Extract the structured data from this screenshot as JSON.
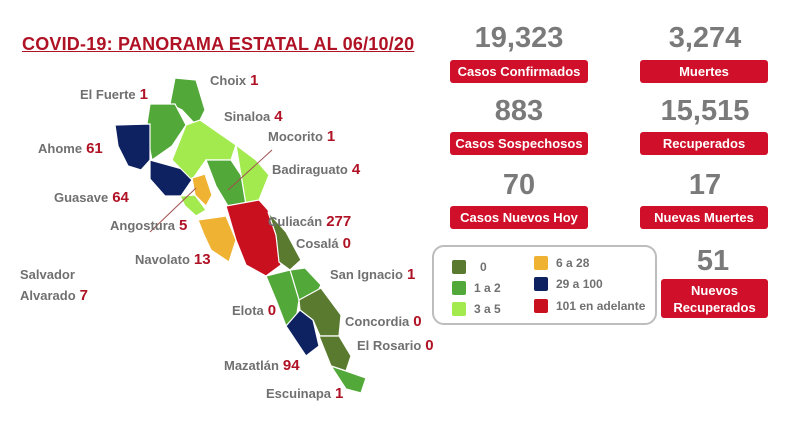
{
  "title": "COVID-19: PANORAMA ESTATAL AL 06/10/20",
  "stats": [
    {
      "value": "19,323",
      "label": "Casos Confirmados"
    },
    {
      "value": "3,274",
      "label": "Muertes"
    },
    {
      "value": "883",
      "label": "Casos Sospechosos"
    },
    {
      "value": "15,515",
      "label": "Recuperados"
    },
    {
      "value": "70",
      "label": "Casos Nuevos Hoy"
    },
    {
      "value": "17",
      "label": "Nuevas Muertes"
    },
    {
      "value": "51",
      "label": "Nuevos Recuperados"
    }
  ],
  "legend": [
    {
      "label": "0",
      "color": "#5a7a30"
    },
    {
      "label": "1 a 2",
      "color": "#52a838"
    },
    {
      "label": "3 a 5",
      "color": "#a2ea4e"
    },
    {
      "label": "6 a 28",
      "color": "#f0b232"
    },
    {
      "label": "29 a 100",
      "color": "#0e2262"
    },
    {
      "label": "101 en adelante",
      "color": "#c8101e"
    }
  ],
  "municipalities": [
    {
      "name": "Choix",
      "value": "1"
    },
    {
      "name": "El Fuerte",
      "value": "1"
    },
    {
      "name": "Sinaloa",
      "value": "4"
    },
    {
      "name": "Mocorito",
      "value": "1"
    },
    {
      "name": "Ahome",
      "value": "61"
    },
    {
      "name": "Badiraguato",
      "value": "4"
    },
    {
      "name": "Guasave",
      "value": "64"
    },
    {
      "name": "Angostura",
      "value": "5"
    },
    {
      "name": "Culiacán",
      "value": "277"
    },
    {
      "name": "Navolato",
      "value": "13"
    },
    {
      "name": "Cosalá",
      "value": "0"
    },
    {
      "name": "Salvador Alvarado",
      "value": "7"
    },
    {
      "name": "San Ignacio",
      "value": "1"
    },
    {
      "name": "Elota",
      "value": "0"
    },
    {
      "name": "Concordia",
      "value": "0"
    },
    {
      "name": "El Rosario",
      "value": "0"
    },
    {
      "name": "Mazatlán",
      "value": "94"
    },
    {
      "name": "Escuinapa",
      "value": "1"
    }
  ]
}
